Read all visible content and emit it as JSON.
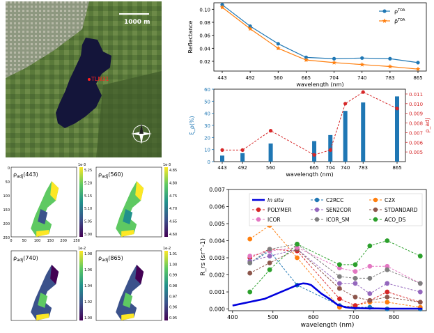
{
  "map": {
    "scale_label": "1000 m",
    "point_label": "TLN31",
    "colors": {
      "water": "#14153a",
      "land": "#5e7a3e",
      "urban": "#9aa28a",
      "point": "#ff2020"
    }
  },
  "chart_data": [
    {
      "id": "reflectance",
      "type": "line",
      "ylabel": "Reflectance",
      "xlabel": "wavelength (nm)",
      "categories": [
        "443",
        "492",
        "560",
        "665",
        "704",
        "740",
        "783",
        "865"
      ],
      "ylim": [
        0.005,
        0.11
      ],
      "yticks": [
        "0.02",
        "0.04",
        "0.06",
        "0.08",
        "0.10"
      ],
      "legend_position": "top-right",
      "series": [
        {
          "name": "ρ^TOA",
          "legend_main": "ρ",
          "legend_sup": "TOA",
          "color": "#1f77b4",
          "marker": "circle",
          "values": [
            0.107,
            0.074,
            0.047,
            0.026,
            0.024,
            0.025,
            0.024,
            0.018
          ]
        },
        {
          "name": "ρ̃^TOA",
          "legend_main": "ρ̃",
          "legend_sup": "TOA",
          "color": "#ff7f0e",
          "marker": "star",
          "values": [
            0.103,
            0.07,
            0.04,
            0.022,
            0.018,
            0.015,
            0.012,
            0.008
          ]
        }
      ]
    },
    {
      "id": "rho-adj",
      "type": "bar",
      "xlabel": "wavelength (nm)",
      "ylabel_left": "ξ_ρ(%)",
      "ylabel_right": "ρ_adj",
      "categories": [
        "443",
        "492",
        "560",
        "665",
        "704",
        "740",
        "783",
        "865"
      ],
      "ylim_left": [
        0,
        60
      ],
      "yticks_left": [
        "0",
        "10",
        "20",
        "30",
        "40",
        "50",
        "60"
      ],
      "ylim_right": [
        0.004,
        0.0115
      ],
      "yticks_right": [
        "0.005",
        "0.006",
        "0.007",
        "0.008",
        "0.009",
        "0.010",
        "0.011"
      ],
      "bar_color": "#1f77b4",
      "line_color": "#d62728",
      "bars": [
        5,
        7,
        15,
        17,
        22,
        42,
        49,
        54
      ],
      "line": [
        0.0052,
        0.0052,
        0.0072,
        0.0047,
        0.0052,
        0.01,
        0.0112,
        0.0095
      ]
    },
    {
      "id": "rrs",
      "type": "line",
      "xlabel": "wavelength (nm)",
      "ylabel": "R_rs (sr^-1)",
      "xlim": [
        390,
        880
      ],
      "xticks": [
        "400",
        "500",
        "600",
        "700",
        "800"
      ],
      "ylim": [
        -0.0001,
        0.007
      ],
      "yticks": [
        "0.000",
        "0.001",
        "0.002",
        "0.003",
        "0.004",
        "0.005",
        "0.006",
        "0.007"
      ],
      "legend": [
        {
          "name": "In situ",
          "color": "#0000dd",
          "style": "solid",
          "italic": true
        },
        {
          "name": "C2RCC",
          "color": "#1f77b4",
          "style": "dashed"
        },
        {
          "name": "C2X",
          "color": "#ff7f0e",
          "style": "dashed"
        },
        {
          "name": "POLYMER",
          "color": "#d62728",
          "style": "dashed"
        },
        {
          "name": "SEN2COR",
          "color": "#9467bd",
          "style": "dashed"
        },
        {
          "name": "STDANDARD",
          "color": "#8c564b",
          "style": "dashed"
        },
        {
          "name": "ICOR",
          "color": "#e377c2",
          "style": "dashed"
        },
        {
          "name": "ICOR_SM",
          "color": "#7f7f7f",
          "style": "dashed"
        },
        {
          "name": "ACO_DS",
          "color": "#2ca02c",
          "style": "dashed"
        }
      ],
      "x": [
        443,
        492,
        560,
        665,
        704,
        740,
        783,
        865
      ],
      "insitu": {
        "name": "In situ",
        "color": "#0000dd",
        "x": [
          400,
          420,
          440,
          460,
          480,
          500,
          520,
          540,
          555,
          565,
          575,
          585,
          595,
          605,
          620,
          640,
          660,
          680,
          700,
          720,
          740,
          760,
          780,
          800,
          820,
          850,
          870
        ],
        "y": [
          0.0002,
          0.0003,
          0.0004,
          0.0005,
          0.0006,
          0.0008,
          0.001,
          0.0012,
          0.00135,
          0.00145,
          0.0015,
          0.00148,
          0.0014,
          0.0012,
          0.0009,
          0.0006,
          0.00025,
          0.0001,
          5e-05,
          4e-05,
          3e-05,
          3e-05,
          2e-05,
          2e-05,
          2e-05,
          2e-05,
          2e-05
        ]
      },
      "series": [
        {
          "name": "C2RCC",
          "color": "#1f77b4",
          "values": [
            0.0027,
            0.0034,
            0.0014,
            0.0002,
            0.0001,
            0.0001,
            0.0,
            0.0
          ]
        },
        {
          "name": "C2X",
          "color": "#ff7f0e",
          "values": [
            0.0041,
            0.0049,
            0.003,
            0.0001,
            0.0002,
            0.0004,
            0.0004,
            0.0001
          ]
        },
        {
          "name": "POLYMER",
          "color": "#d62728",
          "values": [
            0.003,
            0.0035,
            0.0034,
            0.0006,
            0.0002,
            0.0005,
            0.001,
            0.0004
          ]
        },
        {
          "name": "SEN2COR",
          "color": "#9467bd",
          "values": [
            0.0028,
            0.0031,
            0.0035,
            0.0015,
            0.0015,
            0.0009,
            0.0015,
            0.001
          ]
        },
        {
          "name": "STDANDARD",
          "color": "#8c564b",
          "values": [
            0.0021,
            0.0027,
            0.0035,
            0.0012,
            0.0007,
            0.0005,
            0.0007,
            0.0004
          ]
        },
        {
          "name": "ICOR",
          "color": "#e377c2",
          "values": [
            0.0031,
            0.0034,
            0.0036,
            0.0024,
            0.0022,
            0.0025,
            0.0025,
            0.0015
          ]
        },
        {
          "name": "ICOR_SM",
          "color": "#7f7f7f",
          "values": [
            0.0027,
            0.0035,
            0.0038,
            0.0019,
            0.0018,
            0.0018,
            0.0023,
            0.0015
          ]
        },
        {
          "name": "ACO_DS",
          "color": "#2ca02c",
          "values": [
            0.001,
            0.0023,
            0.0038,
            0.0026,
            0.0026,
            0.0037,
            0.004,
            0.0031
          ]
        }
      ]
    }
  ],
  "heatmaps": [
    {
      "id": "h443",
      "label": "ρ_adj(443)",
      "label_main": "ρ",
      "label_sub": "adj",
      "label_arg": "(443)",
      "exponent": "1e-3",
      "cticks": [
        "5.25",
        "5.20",
        "5.15",
        "5.10",
        "5.05",
        "5.00"
      ],
      "xticks": [
        "0",
        "50",
        "100",
        "150",
        "200",
        "250"
      ],
      "yticks": [
        "0",
        "50",
        "100",
        "150",
        "200",
        "250"
      ]
    },
    {
      "id": "h560",
      "label": "ρ_adj(560)",
      "label_main": "ρ",
      "label_sub": "adj",
      "label_arg": "(560)",
      "exponent": "1e-3",
      "cticks": [
        "4.85",
        "4.80",
        "4.75",
        "4.70",
        "4.65",
        "4.60"
      ]
    },
    {
      "id": "h740",
      "label": "ρ_adj(740)",
      "label_main": "ρ",
      "label_sub": "adj",
      "label_arg": "(740)",
      "exponent": "1e-2",
      "cticks": [
        "1.08",
        "1.06",
        "1.04",
        "1.02",
        "1.00"
      ]
    },
    {
      "id": "h865",
      "label": "ρ_adj(865)",
      "label_main": "ρ",
      "label_sub": "adj",
      "label_arg": "(865)",
      "exponent": "1e-2",
      "cticks": [
        "1.01",
        "1.00",
        "0.99",
        "0.98",
        "0.97",
        "0.96",
        "0.95"
      ]
    }
  ]
}
